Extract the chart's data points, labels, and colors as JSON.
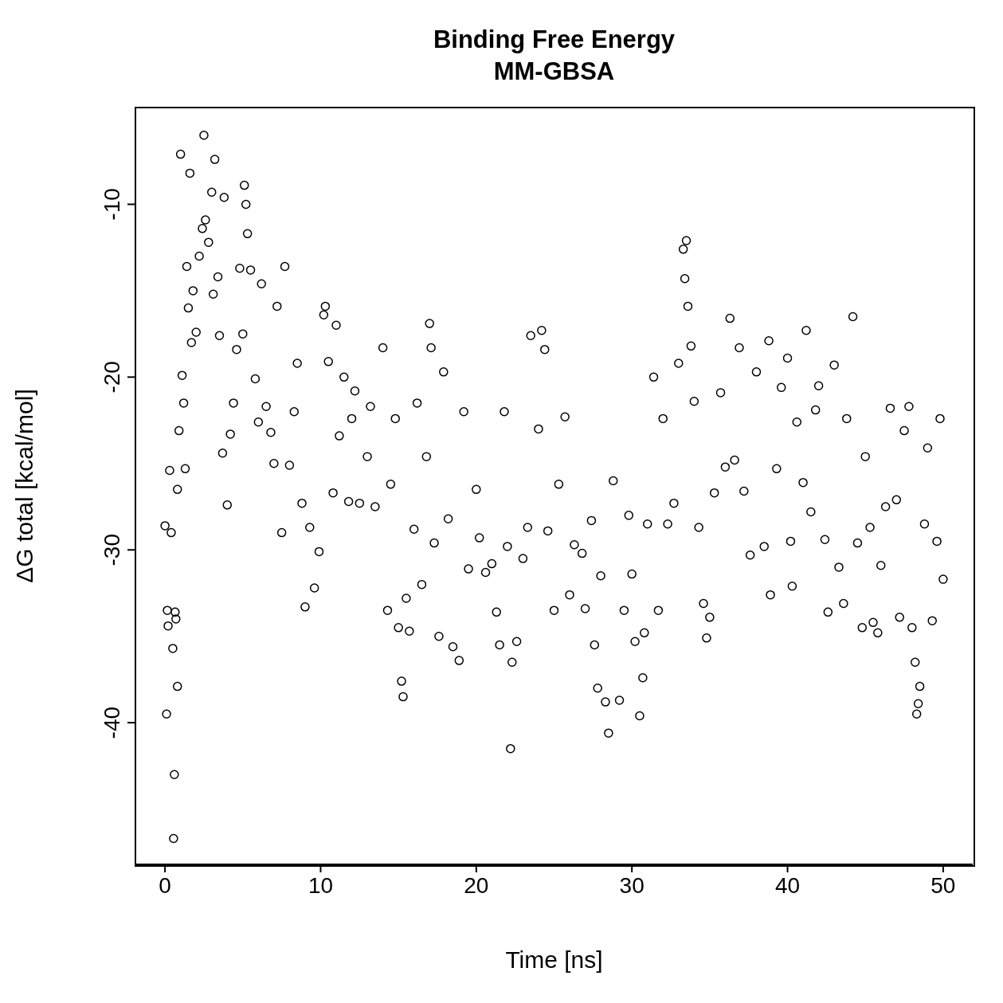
{
  "chart_data": {
    "type": "scatter",
    "title": "Binding Free Energy",
    "subtitle": "MM-GBSA",
    "xlabel": "Time [ns]",
    "ylabel": "ΔG total [kcal/mol]",
    "xlim": [
      -1.9,
      51.9
    ],
    "ylim": [
      -48.2,
      -4.4
    ],
    "xticks": [
      0,
      10,
      20,
      30,
      40,
      50
    ],
    "yticks": [
      -40,
      -30,
      -20,
      -10
    ],
    "grid": false,
    "legend": false,
    "marker": "circle",
    "series": [
      {
        "color": "#000000",
        "x": [
          0,
          0.1,
          0.15,
          0.2,
          0.3,
          0.4,
          0.5,
          0.55,
          0.6,
          0.65,
          0.7,
          0.8,
          0.8,
          0.9,
          1.0,
          1.1,
          1.2,
          1.3,
          1.4,
          1.5,
          1.6,
          1.7,
          1.8,
          2.0,
          2.2,
          2.4,
          2.5,
          2.6,
          2.8,
          3.0,
          3.1,
          3.2,
          3.4,
          3.5,
          3.7,
          3.8,
          4.0,
          4.2,
          4.4,
          4.6,
          4.8,
          5.0,
          5.1,
          5.2,
          5.3,
          5.5,
          5.8,
          6.0,
          6.2,
          6.5,
          6.8,
          7.0,
          7.2,
          7.5,
          7.7,
          8.0,
          8.3,
          8.5,
          8.8,
          9.0,
          9.3,
          9.6,
          9.9,
          10.2,
          10.3,
          10.5,
          10.8,
          11.0,
          11.2,
          11.5,
          11.8,
          12.0,
          12.2,
          12.5,
          13.0,
          13.2,
          13.5,
          14.0,
          14.3,
          14.5,
          14.8,
          15.0,
          15.2,
          15.3,
          15.5,
          15.7,
          16.0,
          16.2,
          16.5,
          16.8,
          17.0,
          17.1,
          17.3,
          17.6,
          17.9,
          18.2,
          18.5,
          18.9,
          19.2,
          19.5,
          20.0,
          20.2,
          20.6,
          21.0,
          21.3,
          21.5,
          21.8,
          22.0,
          22.2,
          22.3,
          22.6,
          23.0,
          23.3,
          23.5,
          24.0,
          24.2,
          24.4,
          24.6,
          25.0,
          25.3,
          25.7,
          26.0,
          26.3,
          26.8,
          27.0,
          27.4,
          27.6,
          27.8,
          28.0,
          28.3,
          28.5,
          28.8,
          29.2,
          29.5,
          29.8,
          30.0,
          30.2,
          30.5,
          30.7,
          30.8,
          31.0,
          31.4,
          31.7,
          32.0,
          32.3,
          32.7,
          33.0,
          33.3,
          33.4,
          33.5,
          33.6,
          33.8,
          34.0,
          34.3,
          34.6,
          34.8,
          35.0,
          35.3,
          35.7,
          36.0,
          36.3,
          36.6,
          36.9,
          37.2,
          37.6,
          38.0,
          38.5,
          38.8,
          38.9,
          39.3,
          39.6,
          40.0,
          40.2,
          40.3,
          40.6,
          41.0,
          41.2,
          41.5,
          41.8,
          42.0,
          42.4,
          42.6,
          43.0,
          43.3,
          43.6,
          43.8,
          44.2,
          44.5,
          44.8,
          45.0,
          45.3,
          45.5,
          45.8,
          46.0,
          46.3,
          46.6,
          47.0,
          47.2,
          47.5,
          47.8,
          48.0,
          48.2,
          48.3,
          48.4,
          48.5,
          48.8,
          49.0,
          49.3,
          49.6,
          49.8,
          50.0
        ],
        "values": [
          -28.6,
          -39.5,
          -33.5,
          -34.4,
          -25.4,
          -29,
          -35.7,
          -46.7,
          -43,
          -33.6,
          -34,
          -37.9,
          -26.5,
          -23.1,
          -7.1,
          -19.9,
          -21.5,
          -25.3,
          -13.6,
          -16,
          -8.2,
          -18,
          -15,
          -17.4,
          -13,
          -11.4,
          -6,
          -10.9,
          -12.2,
          -9.3,
          -15.2,
          -7.4,
          -14.2,
          -17.6,
          -24.4,
          -9.6,
          -27.4,
          -23.3,
          -21.5,
          -18.4,
          -13.7,
          -17.5,
          -8.9,
          -10,
          -11.7,
          -13.8,
          -20.1,
          -22.6,
          -14.6,
          -21.7,
          -23.2,
          -25,
          -15.9,
          -29,
          -13.6,
          -25.1,
          -22,
          -19.2,
          -27.3,
          -33.3,
          -28.7,
          -32.2,
          -30.1,
          -16.4,
          -15.9,
          -19.1,
          -26.7,
          -17,
          -23.4,
          -20,
          -27.2,
          -22.4,
          -20.8,
          -27.3,
          -24.6,
          -21.7,
          -27.5,
          -18.3,
          -33.5,
          -26.2,
          -22.4,
          -34.5,
          -37.6,
          -38.5,
          -32.8,
          -34.7,
          -28.8,
          -21.5,
          -32,
          -24.6,
          -16.9,
          -18.3,
          -29.6,
          -35,
          -19.7,
          -28.2,
          -35.6,
          -36.4,
          -22,
          -31.1,
          -26.5,
          -29.3,
          -31.3,
          -30.8,
          -33.6,
          -35.5,
          -22,
          -29.8,
          -41.5,
          -36.5,
          -35.3,
          -30.5,
          -28.7,
          -17.6,
          -23,
          -17.3,
          -18.4,
          -28.9,
          -33.5,
          -26.2,
          -22.3,
          -32.6,
          -29.7,
          -30.2,
          -33.4,
          -28.3,
          -35.5,
          -38,
          -31.5,
          -38.8,
          -40.6,
          -26,
          -38.7,
          -33.5,
          -28,
          -31.4,
          -35.3,
          -39.6,
          -37.4,
          -34.8,
          -28.5,
          -20,
          -33.5,
          -22.4,
          -28.5,
          -27.3,
          -19.2,
          -12.6,
          -14.3,
          -12.1,
          -15.9,
          -18.2,
          -21.4,
          -28.7,
          -33.1,
          -35.1,
          -33.9,
          -26.7,
          -20.9,
          -25.2,
          -16.6,
          -24.8,
          -18.3,
          -26.6,
          -30.3,
          -19.7,
          -29.8,
          -17.9,
          -32.6,
          -25.3,
          -20.6,
          -18.9,
          -29.5,
          -32.1,
          -22.6,
          -26.1,
          -17.3,
          -27.8,
          -21.9,
          -20.5,
          -29.4,
          -33.6,
          -19.3,
          -31,
          -33.1,
          -22.4,
          -16.5,
          -29.6,
          -34.5,
          -24.6,
          -28.7,
          -34.2,
          -34.8,
          -30.9,
          -27.5,
          -21.8,
          -27.1,
          -33.9,
          -23.1,
          -21.7,
          -34.5,
          -36.5,
          -39.5,
          -38.9,
          -37.9,
          -28.5,
          -24.1,
          -34.1,
          -29.5,
          -22.4,
          -31.7
        ]
      }
    ]
  }
}
